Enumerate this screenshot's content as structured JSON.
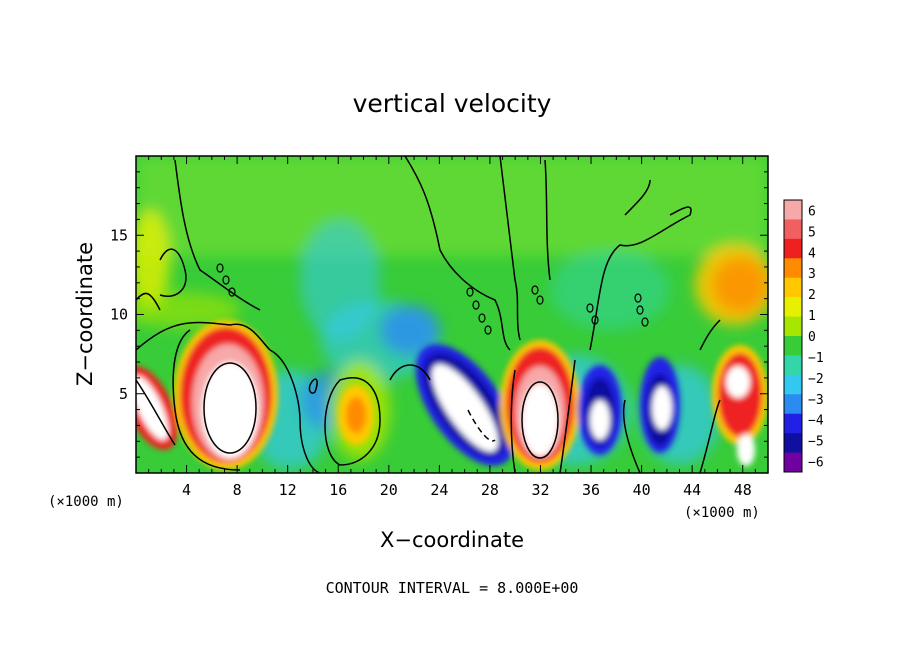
{
  "chart_data": {
    "type": "heatmap",
    "title": "vertical velocity",
    "xlabel": "X−coordinate",
    "ylabel": "Z−coordinate",
    "x_unit_label": "(×1000 m)",
    "xlim": [
      0,
      50
    ],
    "ylim": [
      0,
      20
    ],
    "x_ticks": [
      4,
      8,
      12,
      16,
      20,
      24,
      28,
      32,
      36,
      40,
      44,
      48
    ],
    "y_ticks": [
      5,
      10,
      15
    ],
    "colorbar": {
      "labels": [
        "6",
        "5",
        "4",
        "3",
        "2",
        "1",
        "0",
        "−1",
        "−2",
        "−3",
        "−4",
        "−5",
        "−6"
      ],
      "colors": [
        "#f7a8a8",
        "#f06060",
        "#ee2020",
        "#ff8c00",
        "#ffc800",
        "#e6f000",
        "#a6e600",
        "#38cc38",
        "#33d6a8",
        "#33c8f0",
        "#2a8cf0",
        "#2020e6",
        "#1010a0",
        "#7000a0"
      ]
    },
    "contour_note": "CONTOUR INTERVAL = 8.000E+00",
    "features": [
      {
        "x": 1.5,
        "z": 3.5,
        "w": 8,
        "kind": "updraft"
      },
      {
        "x": 7.0,
        "z": 4.5,
        "w": 9,
        "kind": "updraft"
      },
      {
        "x": 4.5,
        "z": 4.5,
        "w": 6,
        "kind": "updraft"
      },
      {
        "x": 17.5,
        "z": 3.5,
        "w": 2.5,
        "kind": "updraft"
      },
      {
        "x": 26.0,
        "z": 4.0,
        "w": -7,
        "kind": "downdraft"
      },
      {
        "x": 31.5,
        "z": 4.0,
        "w": 8,
        "kind": "updraft"
      },
      {
        "x": 36.5,
        "z": 4.0,
        "w": -6,
        "kind": "downdraft"
      },
      {
        "x": 41.0,
        "z": 4.5,
        "w": -6,
        "kind": "downdraft"
      },
      {
        "x": 46.5,
        "z": 5.5,
        "w": 6,
        "kind": "updraft"
      },
      {
        "x": 47.5,
        "z": 12.0,
        "w": 3,
        "kind": "updraft"
      },
      {
        "x": 22.0,
        "z": 8.0,
        "w": -3.5,
        "kind": "downdraft"
      },
      {
        "x": 15.0,
        "z": 12.0,
        "w": -2,
        "kind": "downdraft"
      }
    ]
  }
}
